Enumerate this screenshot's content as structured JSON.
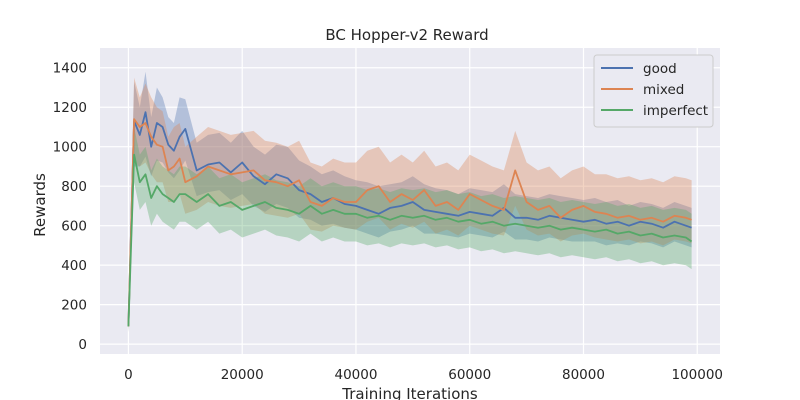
{
  "chart_data": {
    "type": "line",
    "title": "BC Hopper-v2 Reward",
    "xlabel": "Training Iterations",
    "ylabel": "Rewards",
    "xlim": [
      -5000,
      104000
    ],
    "ylim": [
      -50,
      1500
    ],
    "xticks": [
      0,
      20000,
      40000,
      60000,
      80000,
      100000
    ],
    "yticks": [
      0,
      200,
      400,
      600,
      800,
      1000,
      1200,
      1400
    ],
    "grid": true,
    "background": "#eaeaf2",
    "legend_position": "top-right",
    "x": [
      0,
      1000,
      2000,
      3000,
      4000,
      5000,
      6000,
      7000,
      8000,
      9000,
      10000,
      12000,
      14000,
      16000,
      18000,
      20000,
      22000,
      24000,
      26000,
      28000,
      30000,
      32000,
      34000,
      36000,
      38000,
      40000,
      42000,
      44000,
      46000,
      48000,
      50000,
      52000,
      54000,
      56000,
      58000,
      60000,
      62000,
      64000,
      66000,
      68000,
      70000,
      72000,
      74000,
      76000,
      78000,
      80000,
      82000,
      84000,
      86000,
      88000,
      90000,
      92000,
      94000,
      96000,
      98000,
      99000
    ],
    "series": [
      {
        "name": "good",
        "color": "#4c72b0",
        "values": [
          90,
          1130,
          1060,
          1175,
          1000,
          1120,
          1100,
          1010,
          980,
          1050,
          1090,
          880,
          910,
          920,
          870,
          920,
          850,
          810,
          860,
          840,
          780,
          760,
          720,
          740,
          710,
          700,
          680,
          660,
          690,
          700,
          720,
          680,
          670,
          660,
          650,
          670,
          660,
          650,
          690,
          640,
          640,
          630,
          650,
          640,
          630,
          620,
          630,
          610,
          620,
          600,
          620,
          610,
          590,
          620,
          600,
          590
        ],
        "band_upper": [
          140,
          1330,
          1200,
          1380,
          1150,
          1300,
          1250,
          1150,
          1120,
          1250,
          1240,
          1020,
          1060,
          1070,
          1020,
          1080,
          1000,
          960,
          1010,
          1000,
          930,
          900,
          860,
          880,
          850,
          830,
          820,
          800,
          810,
          820,
          850,
          810,
          790,
          780,
          760,
          790,
          780,
          770,
          810,
          760,
          750,
          740,
          760,
          750,
          740,
          730,
          740,
          720,
          730,
          700,
          720,
          710,
          690,
          720,
          700,
          690
        ],
        "band_lower": [
          60,
          900,
          900,
          950,
          850,
          930,
          920,
          870,
          840,
          880,
          930,
          750,
          770,
          780,
          730,
          760,
          700,
          670,
          710,
          690,
          640,
          630,
          600,
          610,
          590,
          580,
          560,
          540,
          570,
          580,
          600,
          560,
          560,
          550,
          540,
          560,
          550,
          540,
          570,
          530,
          530,
          520,
          540,
          530,
          520,
          520,
          520,
          500,
          510,
          500,
          520,
          510,
          490,
          520,
          500,
          490
        ]
      },
      {
        "name": "mixed",
        "color": "#dd8452",
        "values": [
          90,
          1140,
          1100,
          1120,
          1050,
          1010,
          1000,
          880,
          900,
          940,
          820,
          850,
          900,
          880,
          860,
          870,
          880,
          830,
          820,
          800,
          830,
          720,
          700,
          740,
          720,
          720,
          780,
          800,
          720,
          760,
          730,
          780,
          700,
          720,
          680,
          760,
          730,
          700,
          680,
          880,
          720,
          680,
          700,
          640,
          680,
          700,
          670,
          660,
          640,
          650,
          630,
          640,
          620,
          650,
          640,
          630
        ],
        "band_upper": [
          140,
          1350,
          1250,
          1320,
          1250,
          1200,
          1180,
          1050,
          1100,
          1120,
          1000,
          1050,
          1100,
          1080,
          1060,
          1070,
          1080,
          1030,
          1020,
          1000,
          1030,
          920,
          900,
          940,
          920,
          920,
          980,
          1000,
          920,
          960,
          920,
          980,
          900,
          920,
          880,
          960,
          930,
          900,
          880,
          1080,
          920,
          880,
          900,
          840,
          880,
          900,
          860,
          860,
          840,
          850,
          830,
          840,
          820,
          850,
          840,
          830
        ],
        "band_lower": [
          60,
          920,
          900,
          920,
          860,
          820,
          820,
          720,
          720,
          760,
          660,
          680,
          720,
          700,
          690,
          700,
          710,
          660,
          650,
          640,
          660,
          580,
          570,
          600,
          590,
          580,
          620,
          640,
          580,
          610,
          590,
          620,
          560,
          580,
          550,
          600,
          580,
          560,
          550,
          700,
          580,
          550,
          560,
          520,
          550,
          560,
          540,
          530,
          520,
          530,
          510,
          520,
          500,
          530,
          520,
          510
        ]
      },
      {
        "name": "imperfect",
        "color": "#55a868",
        "values": [
          90,
          960,
          820,
          860,
          740,
          800,
          760,
          740,
          720,
          760,
          760,
          720,
          760,
          700,
          720,
          680,
          700,
          720,
          690,
          680,
          660,
          700,
          660,
          680,
          660,
          660,
          640,
          650,
          630,
          650,
          640,
          650,
          630,
          640,
          620,
          630,
          610,
          620,
          600,
          610,
          600,
          590,
          600,
          580,
          590,
          580,
          570,
          580,
          560,
          570,
          550,
          560,
          540,
          550,
          540,
          520
        ],
        "band_upper": [
          140,
          1100,
          960,
          1000,
          880,
          940,
          900,
          880,
          860,
          900,
          900,
          860,
          900,
          840,
          860,
          820,
          840,
          860,
          830,
          820,
          800,
          840,
          800,
          820,
          800,
          800,
          780,
          790,
          770,
          790,
          780,
          790,
          770,
          780,
          760,
          770,
          750,
          760,
          740,
          750,
          740,
          730,
          740,
          720,
          730,
          720,
          710,
          720,
          700,
          710,
          690,
          700,
          680,
          690,
          680,
          660
        ],
        "band_lower": [
          60,
          820,
          680,
          720,
          600,
          660,
          620,
          600,
          580,
          620,
          620,
          580,
          620,
          560,
          580,
          540,
          560,
          580,
          550,
          540,
          520,
          560,
          520,
          540,
          520,
          520,
          500,
          510,
          490,
          510,
          500,
          510,
          490,
          500,
          480,
          490,
          470,
          480,
          460,
          470,
          460,
          450,
          460,
          440,
          450,
          440,
          430,
          440,
          420,
          430,
          410,
          420,
          400,
          410,
          400,
          380
        ]
      }
    ]
  }
}
